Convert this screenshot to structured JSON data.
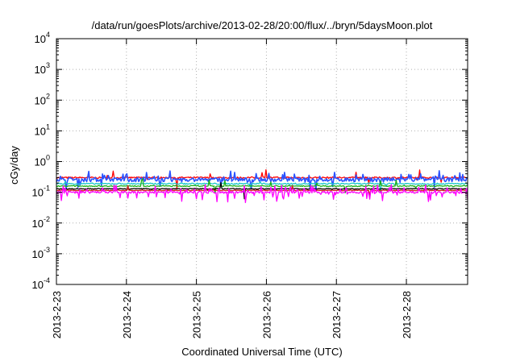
{
  "chart_data": {
    "type": "line",
    "title": "/data/run/goesPlots/archive/2013-02-28/20:00/flux/../bryn/5daysMoon.plot",
    "xlabel": "Coordinated Universal Time (UTC)",
    "ylabel": "cGy/day",
    "y_scale": "log",
    "ylim": [
      0.0001,
      10000
    ],
    "xlim": [
      "2013-02-23",
      "2013-02-28T21:00"
    ],
    "grid": true,
    "legend": "none",
    "x_ticks": [
      "2013-2-23",
      "2013-2-24",
      "2013-2-25",
      "2013-2-26",
      "2013-2-27",
      "2013-2-28"
    ],
    "y_ticks": [
      {
        "base": "10",
        "exp": "-4"
      },
      {
        "base": "10",
        "exp": "-3"
      },
      {
        "base": "10",
        "exp": "-2"
      },
      {
        "base": "10",
        "exp": "-1"
      },
      {
        "base": "10",
        "exp": "0"
      },
      {
        "base": "10",
        "exp": "1"
      },
      {
        "base": "10",
        "exp": "2"
      },
      {
        "base": "10",
        "exp": "3"
      },
      {
        "base": "10",
        "exp": "4"
      }
    ],
    "series": [
      {
        "color": "#ff0000",
        "level": 0.3,
        "noise": 0.06,
        "spikes": 0.03
      },
      {
        "color": "#2a52ff",
        "level": 0.26,
        "noise": 0.15,
        "spikes": 0.18
      },
      {
        "color": "#18c8c8",
        "level": 0.19,
        "noise": 0.05,
        "spikes": 0.02
      },
      {
        "color": "#18b018",
        "level": 0.16,
        "noise": 0.04,
        "spikes": 0.02
      },
      {
        "color": "#000000",
        "level": 0.13,
        "noise": 0.03,
        "spikes": 0.01
      },
      {
        "color": "#cc1a1a",
        "level": 0.115,
        "noise": 0.03,
        "spikes": 0.01
      },
      {
        "color": "#ff00ff",
        "level": 0.1,
        "noise": 0.08,
        "spikes": 0.25
      }
    ]
  }
}
